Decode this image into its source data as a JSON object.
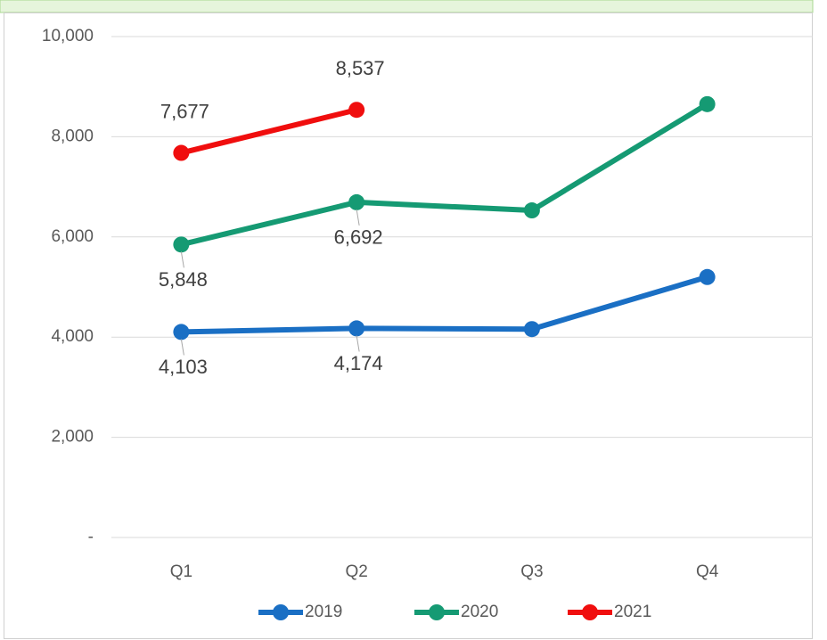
{
  "chart_data": {
    "type": "line",
    "categories": [
      "Q1",
      "Q2",
      "Q3",
      "Q4"
    ],
    "series": [
      {
        "name": "2019",
        "color": "#1a6fc4",
        "values": [
          4103,
          4174,
          4160,
          5200
        ],
        "value_labels": [
          "4,103",
          "4,174",
          null,
          null
        ]
      },
      {
        "name": "2020",
        "color": "#159a73",
        "values": [
          5848,
          6692,
          6530,
          8650
        ],
        "value_labels": [
          "5,848",
          "6,692",
          null,
          null
        ]
      },
      {
        "name": "2021",
        "color": "#f00e0e",
        "values": [
          7677,
          8537,
          null,
          null
        ],
        "value_labels": [
          "7,677",
          "8,537",
          null,
          null
        ]
      }
    ],
    "ylim": [
      0,
      10000
    ],
    "yticks": [
      {
        "value": 0,
        "label": "-"
      },
      {
        "value": 2000,
        "label": "2,000"
      },
      {
        "value": 4000,
        "label": "4,000"
      },
      {
        "value": 6000,
        "label": "6,000"
      },
      {
        "value": 8000,
        "label": "8,000"
      },
      {
        "value": 10000,
        "label": "10,000"
      }
    ],
    "grid": true,
    "legend": "bottom"
  }
}
